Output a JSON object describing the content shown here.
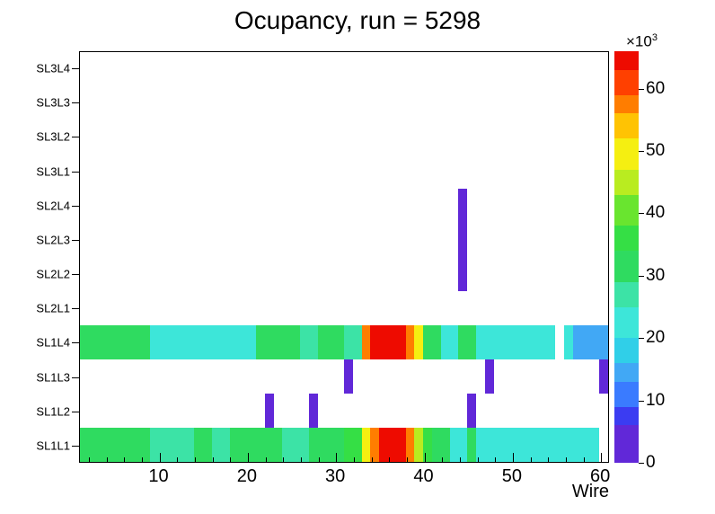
{
  "chart_data": {
    "type": "heatmap",
    "title": "Ocupancy, run = 5298",
    "xlabel": "Wire",
    "x_range": [
      1,
      61
    ],
    "x_ticks": [
      10,
      20,
      30,
      40,
      50,
      60
    ],
    "x_minor_step": 2,
    "rows": [
      "SL3L4",
      "SL3L3",
      "SL3L2",
      "SL3L1",
      "SL2L4",
      "SL2L3",
      "SL2L2",
      "SL2L1",
      "SL1L4",
      "SL1L3",
      "SL1L2",
      "SL1L1"
    ],
    "z_max": 66,
    "z_ticks": [
      0,
      10,
      20,
      30,
      40,
      50,
      60
    ],
    "z_scale_prefix": "×10",
    "z_scale_exp": "3",
    "z_values_unit": "counts × 1000",
    "palette": [
      {
        "upto": 6,
        "color": "#6128d8"
      },
      {
        "upto": 9,
        "color": "#3b3cf2"
      },
      {
        "upto": 13,
        "color": "#3a7bff"
      },
      {
        "upto": 16,
        "color": "#41a8f5"
      },
      {
        "upto": 20,
        "color": "#30cfe8"
      },
      {
        "upto": 25,
        "color": "#3de6d9"
      },
      {
        "upto": 29,
        "color": "#3ce3a6"
      },
      {
        "upto": 34,
        "color": "#2fdb60"
      },
      {
        "upto": 38,
        "color": "#35df45"
      },
      {
        "upto": 43,
        "color": "#69e52f"
      },
      {
        "upto": 47,
        "color": "#b9ec20"
      },
      {
        "upto": 52,
        "color": "#f5ef11"
      },
      {
        "upto": 56,
        "color": "#ffc303"
      },
      {
        "upto": 59,
        "color": "#ff7d00"
      },
      {
        "upto": 63,
        "color": "#ff4000"
      },
      {
        "upto": 66,
        "color": "#ee0b00"
      }
    ],
    "cells": [
      {
        "row": "SL2L4",
        "x1": 44,
        "x2": 45,
        "v": 3
      },
      {
        "row": "SL2L3",
        "x1": 44,
        "x2": 45,
        "v": 3
      },
      {
        "row": "SL2L2",
        "x1": 44,
        "x2": 45,
        "v": 3
      },
      {
        "row": "SL1L4",
        "x1": 1,
        "x2": 9,
        "v": 31
      },
      {
        "row": "SL1L4",
        "x1": 9,
        "x2": 12,
        "v": 24
      },
      {
        "row": "SL1L4",
        "x1": 12,
        "x2": 21,
        "v": 22
      },
      {
        "row": "SL1L4",
        "x1": 21,
        "x2": 26,
        "v": 31
      },
      {
        "row": "SL1L4",
        "x1": 26,
        "x2": 28,
        "v": 26
      },
      {
        "row": "SL1L4",
        "x1": 28,
        "x2": 31,
        "v": 31
      },
      {
        "row": "SL1L4",
        "x1": 31,
        "x2": 33,
        "v": 27
      },
      {
        "row": "SL1L4",
        "x1": 33,
        "x2": 34,
        "v": 57
      },
      {
        "row": "SL1L4",
        "x1": 34,
        "x2": 38,
        "v": 64
      },
      {
        "row": "SL1L4",
        "x1": 38,
        "x2": 39,
        "v": 57
      },
      {
        "row": "SL1L4",
        "x1": 39,
        "x2": 40,
        "v": 49
      },
      {
        "row": "SL1L4",
        "x1": 40,
        "x2": 42,
        "v": 32
      },
      {
        "row": "SL1L4",
        "x1": 42,
        "x2": 44,
        "v": 22
      },
      {
        "row": "SL1L4",
        "x1": 44,
        "x2": 46,
        "v": 30
      },
      {
        "row": "SL1L4",
        "x1": 46,
        "x2": 55,
        "v": 21
      },
      {
        "row": "SL1L4",
        "x1": 56,
        "x2": 57,
        "v": 22
      },
      {
        "row": "SL1L4",
        "x1": 57,
        "x2": 61,
        "v": 14
      },
      {
        "row": "SL1L3",
        "x1": 31,
        "x2": 32,
        "v": 3
      },
      {
        "row": "SL1L3",
        "x1": 47,
        "x2": 48,
        "v": 3
      },
      {
        "row": "SL1L3",
        "x1": 60,
        "x2": 61,
        "v": 3
      },
      {
        "row": "SL1L2",
        "x1": 22,
        "x2": 23,
        "v": 3
      },
      {
        "row": "SL1L2",
        "x1": 27,
        "x2": 28,
        "v": 3
      },
      {
        "row": "SL1L2",
        "x1": 45,
        "x2": 46,
        "v": 3
      },
      {
        "row": "SL1L1",
        "x1": 1,
        "x2": 9,
        "v": 31
      },
      {
        "row": "SL1L1",
        "x1": 9,
        "x2": 14,
        "v": 28
      },
      {
        "row": "SL1L1",
        "x1": 14,
        "x2": 16,
        "v": 31
      },
      {
        "row": "SL1L1",
        "x1": 16,
        "x2": 18,
        "v": 28
      },
      {
        "row": "SL1L1",
        "x1": 18,
        "x2": 24,
        "v": 31
      },
      {
        "row": "SL1L1",
        "x1": 24,
        "x2": 27,
        "v": 28
      },
      {
        "row": "SL1L1",
        "x1": 27,
        "x2": 31,
        "v": 31
      },
      {
        "row": "SL1L1",
        "x1": 31,
        "x2": 33,
        "v": 36
      },
      {
        "row": "SL1L1",
        "x1": 33,
        "x2": 34,
        "v": 49
      },
      {
        "row": "SL1L1",
        "x1": 34,
        "x2": 35,
        "v": 57
      },
      {
        "row": "SL1L1",
        "x1": 35,
        "x2": 38,
        "v": 64
      },
      {
        "row": "SL1L1",
        "x1": 38,
        "x2": 39,
        "v": 57
      },
      {
        "row": "SL1L1",
        "x1": 39,
        "x2": 40,
        "v": 44
      },
      {
        "row": "SL1L1",
        "x1": 40,
        "x2": 41,
        "v": 36
      },
      {
        "row": "SL1L1",
        "x1": 41,
        "x2": 43,
        "v": 31
      },
      {
        "row": "SL1L1",
        "x1": 43,
        "x2": 45,
        "v": 24
      },
      {
        "row": "SL1L1",
        "x1": 45,
        "x2": 46,
        "v": 31
      },
      {
        "row": "SL1L1",
        "x1": 46,
        "x2": 60,
        "v": 22
      }
    ]
  }
}
